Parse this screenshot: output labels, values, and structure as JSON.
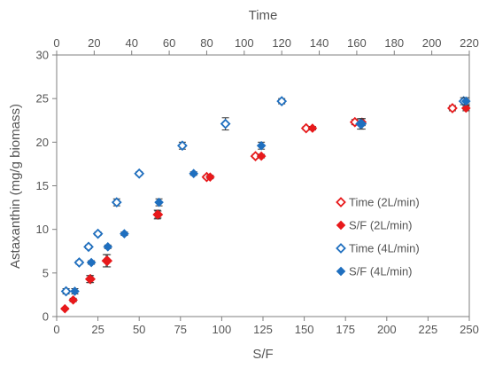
{
  "chart_data": {
    "type": "scatter",
    "xlabel": "S/F",
    "x2label": "Time",
    "ylabel": "Astaxanthin (mg/g biomass)",
    "xlim": [
      0,
      250
    ],
    "x2lim": [
      0,
      220
    ],
    "ylim": [
      0,
      30
    ],
    "x_ticks": [
      0,
      25,
      50,
      75,
      100,
      125,
      150,
      175,
      200,
      225,
      250
    ],
    "x2_ticks": [
      0,
      20,
      40,
      60,
      80,
      100,
      120,
      140,
      160,
      180,
      200,
      220
    ],
    "y_ticks": [
      0,
      5,
      10,
      15,
      20,
      25,
      30
    ],
    "legend_position": "right-middle",
    "colors": {
      "red": "#e8191b",
      "blue": "#1f6fbf",
      "axis": "#7f7f7f"
    },
    "series": [
      {
        "name": "Time (2L/min)",
        "axis": "top",
        "marker": "diamond-open",
        "color": "#e8191b",
        "points": [
          {
            "x": 18,
            "y": 4.3,
            "err": 0.4
          },
          {
            "x": 27,
            "y": 6.4,
            "err": 0.7
          },
          {
            "x": 54,
            "y": 11.7,
            "err": 0.4
          },
          {
            "x": 80,
            "y": 16.0,
            "err": 0.2
          },
          {
            "x": 106,
            "y": 18.4,
            "err": 0.2
          },
          {
            "x": 133,
            "y": 21.6,
            "err": 0.2
          },
          {
            "x": 159,
            "y": 22.3,
            "err": 0.3
          },
          {
            "x": 211,
            "y": 23.9,
            "err": 0.3
          }
        ]
      },
      {
        "name": "S/F (2L/min)",
        "axis": "bottom",
        "marker": "diamond-filled",
        "color": "#e8191b",
        "points": [
          {
            "x": 5,
            "y": 0.9,
            "err": 0.1
          },
          {
            "x": 10,
            "y": 1.9,
            "err": 0.2
          },
          {
            "x": 20,
            "y": 4.3,
            "err": 0.4
          },
          {
            "x": 30,
            "y": 6.4,
            "err": 0.7
          },
          {
            "x": 61,
            "y": 11.7,
            "err": 0.5
          },
          {
            "x": 93,
            "y": 16.0,
            "err": 0.2
          },
          {
            "x": 124,
            "y": 18.4,
            "err": 0.2
          },
          {
            "x": 155,
            "y": 21.6,
            "err": 0.2
          },
          {
            "x": 185,
            "y": 22.3,
            "err": 0.4
          },
          {
            "x": 248,
            "y": 23.9,
            "err": 0.3
          }
        ]
      },
      {
        "name": "Time (4L/min)",
        "axis": "top",
        "marker": "diamond-open",
        "color": "#1f6fbf",
        "points": [
          {
            "x": 5,
            "y": 2.9,
            "err": 0.3
          },
          {
            "x": 12,
            "y": 6.2,
            "err": 0.2
          },
          {
            "x": 17,
            "y": 8.0,
            "err": 0.2
          },
          {
            "x": 22,
            "y": 9.5,
            "err": 0.2
          },
          {
            "x": 32,
            "y": 13.1,
            "err": 0.4
          },
          {
            "x": 44,
            "y": 16.4,
            "err": 0.2
          },
          {
            "x": 67,
            "y": 19.6,
            "err": 0.4
          },
          {
            "x": 90,
            "y": 22.1,
            "err": 0.7
          },
          {
            "x": 120,
            "y": 24.7,
            "err": 0.3
          },
          {
            "x": 162,
            "y": 22.1,
            "err": 0.6
          },
          {
            "x": 217,
            "y": 24.7,
            "err": 0.4
          }
        ]
      },
      {
        "name": "S/F (4L/min)",
        "axis": "bottom",
        "marker": "diamond-filled",
        "color": "#1f6fbf",
        "points": [
          {
            "x": 11,
            "y": 2.9,
            "err": 0.3
          },
          {
            "x": 21,
            "y": 6.2,
            "err": 0.2
          },
          {
            "x": 31,
            "y": 8.0,
            "err": 0.2
          },
          {
            "x": 41,
            "y": 9.5,
            "err": 0.2
          },
          {
            "x": 62,
            "y": 13.1,
            "err": 0.4
          },
          {
            "x": 83,
            "y": 16.4,
            "err": 0.2
          },
          {
            "x": 124,
            "y": 19.6,
            "err": 0.4
          },
          {
            "x": 185,
            "y": 22.1,
            "err": 0.6
          },
          {
            "x": 248,
            "y": 24.7,
            "err": 0.4
          }
        ]
      }
    ]
  }
}
